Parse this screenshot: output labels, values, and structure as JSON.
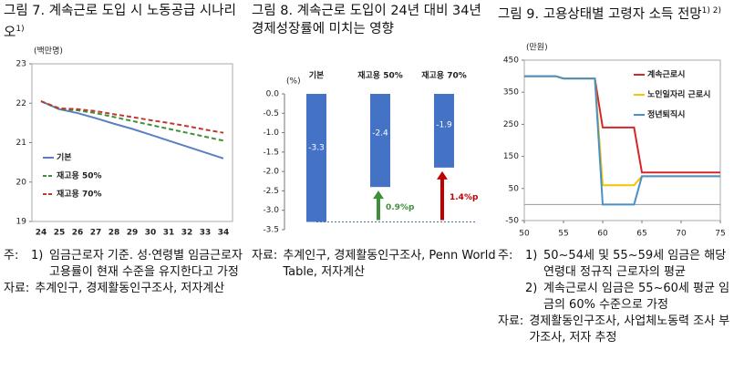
{
  "chart_data": [
    {
      "type": "line",
      "title": "그림 7. 계속근로 도입 시 노동공급 시나리오",
      "title_note": "1)",
      "y_label": "(백만명)",
      "categories": [
        "24",
        "25",
        "26",
        "27",
        "28",
        "29",
        "30",
        "31",
        "32",
        "33",
        "34"
      ],
      "series": [
        {
          "name": "기본",
          "color": "#5b7fc4",
          "style": "solid",
          "values": [
            22.05,
            21.85,
            21.75,
            21.62,
            21.48,
            21.35,
            21.2,
            21.05,
            20.9,
            20.75,
            20.6
          ]
        },
        {
          "name": "재고용 50%",
          "color": "#3f8f3a",
          "style": "dashed",
          "values": [
            22.05,
            21.85,
            21.82,
            21.75,
            21.65,
            21.55,
            21.45,
            21.35,
            21.25,
            21.15,
            21.05
          ]
        },
        {
          "name": "재고용 70%",
          "color": "#c0392b",
          "style": "dashed",
          "values": [
            22.05,
            21.87,
            21.85,
            21.8,
            21.72,
            21.65,
            21.57,
            21.5,
            21.42,
            21.33,
            21.25
          ]
        }
      ],
      "ylim": [
        19,
        23
      ],
      "yticks": [
        19,
        20,
        21,
        22,
        23
      ],
      "legend": "lower-left",
      "notes": [
        {
          "label": "주:",
          "items": [
            {
              "num": "1)",
              "text": "임금근로자 기준. 성·연령별 임금근로자 고용률이 현재 수준을 유지한다고 가정"
            }
          ]
        },
        {
          "label": "자료:",
          "text": "추계인구, 경제활동인구조사, 저자계산"
        }
      ]
    },
    {
      "type": "bar",
      "title": "그림 8. 계속근로 도입이 24년 대비 34년 경제성장률에 미치는 영향",
      "y_label": "(%)",
      "categories": [
        "기본",
        "재고용 50%",
        "재고용 70%"
      ],
      "values": [
        -3.3,
        -2.4,
        -1.9
      ],
      "color": "#4472c4",
      "ylim": [
        -3.5,
        0
      ],
      "yticks": [
        {
          "value": 0,
          "label": "0.0"
        },
        -0.5,
        {
          "value": -1,
          "label": "-1.0"
        },
        -1.5,
        {
          "value": -2,
          "label": "-2.0"
        },
        -2.5,
        {
          "value": -3,
          "label": "-3.0"
        },
        -3.5
      ],
      "annotations": [
        {
          "text": "0.9%p",
          "color": "#3f8f3a"
        },
        {
          "text": "1.4%p",
          "color": "#c00000"
        }
      ],
      "notes": [
        {
          "label": "자료:",
          "text": "추계인구, 경제활동인구조사, Penn World Table, 저자계산"
        }
      ]
    },
    {
      "type": "line",
      "title": "그림 9. 고용상태별 고령자 소득 전망",
      "title_note": "1) 2)",
      "y_label": "(만원)",
      "x": [
        50,
        54,
        55,
        59,
        60,
        64,
        65,
        75
      ],
      "series": [
        {
          "name": "계속근로시",
          "color": "#d62728",
          "style": "solid",
          "values": [
            400,
            400,
            393,
            393,
            240,
            240,
            100,
            100
          ]
        },
        {
          "name": "노인일자리 근로시",
          "color": "#f2c500",
          "style": "solid",
          "values": [
            400,
            400,
            393,
            393,
            60,
            60,
            88,
            88
          ]
        },
        {
          "name": "정년퇴직시",
          "color": "#4a90c8",
          "style": "solid",
          "values": [
            400,
            400,
            393,
            393,
            0,
            0,
            88,
            88
          ]
        }
      ],
      "xlim": [
        50,
        75
      ],
      "xticks": [
        50,
        55,
        60,
        65,
        70,
        75
      ],
      "ylim": [
        -50,
        450
      ],
      "yticks": [
        -50,
        50,
        150,
        250,
        350,
        450
      ],
      "legend": "upper-right",
      "notes": [
        {
          "label": "주:",
          "items": [
            {
              "num": "1)",
              "text": "50~54세 및 55~59세 임금은 해당 연령대 정규직 근로자의 평균"
            },
            {
              "num": "2)",
              "text": "계속근로시 임금은 55~60세 평균 임금의 60% 수준으로 가정"
            }
          ]
        },
        {
          "label": "자료:",
          "text": "경제활동인구조사, 사업체노동력 조사 부가조사, 저자 추정"
        }
      ]
    }
  ]
}
